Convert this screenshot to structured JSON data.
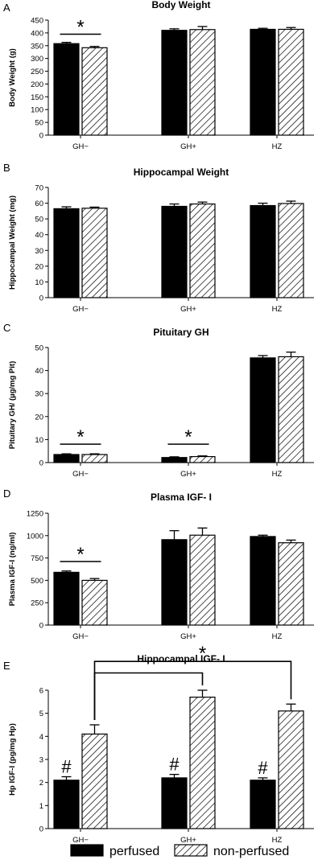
{
  "legend": {
    "items": [
      {
        "label": "perfused",
        "pattern": "solid"
      },
      {
        "label": "non-perfused",
        "pattern": "hatch"
      }
    ],
    "placement": "bottom"
  },
  "chart_data": [
    {
      "panel": "A",
      "type": "bar",
      "title": "Body Weight",
      "ylabel": "Body Weight (g)",
      "categories": [
        "GH−",
        "GH+",
        "HZ"
      ],
      "ylim": [
        0,
        450
      ],
      "yticks": [
        0,
        50,
        100,
        150,
        200,
        250,
        300,
        350,
        400,
        450
      ],
      "series": [
        {
          "name": "perfused",
          "values": [
            358,
            410,
            414
          ],
          "errors": [
            5,
            6,
            4
          ]
        },
        {
          "name": "non-perfused",
          "values": [
            342,
            413,
            414
          ],
          "errors": [
            5,
            12,
            7
          ]
        }
      ],
      "annotations": [
        {
          "type": "bracket",
          "from": [
            0,
            0
          ],
          "to": [
            0,
            1
          ],
          "y": 395,
          "label": "*"
        }
      ]
    },
    {
      "panel": "B",
      "type": "bar",
      "title": "Hippocampal Weight",
      "ylabel": "Hippocampal Weight (mg)",
      "categories": [
        "GH−",
        "GH+",
        "HZ"
      ],
      "ylim": [
        0,
        70
      ],
      "yticks": [
        0,
        10,
        20,
        30,
        40,
        50,
        60,
        70
      ],
      "series": [
        {
          "name": "perfused",
          "values": [
            56.5,
            58,
            58.5
          ],
          "errors": [
            1.2,
            1.5,
            1.5
          ]
        },
        {
          "name": "non-perfused",
          "values": [
            56.8,
            59.5,
            59.8
          ],
          "errors": [
            0.7,
            1.2,
            1.5
          ]
        }
      ],
      "annotations": []
    },
    {
      "panel": "C",
      "type": "bar",
      "title": "Pituitary GH",
      "ylabel": "Pituitary GH/ (µg/mg Pit)",
      "categories": [
        "GH−",
        "GH+",
        "HZ"
      ],
      "ylim": [
        0,
        50
      ],
      "yticks": [
        0,
        10,
        20,
        30,
        40,
        50
      ],
      "series": [
        {
          "name": "perfused",
          "values": [
            3.5,
            2.2,
            45.5
          ],
          "errors": [
            0.3,
            0.3,
            1.0
          ]
        },
        {
          "name": "non-perfused",
          "values": [
            3.5,
            2.6,
            46
          ],
          "errors": [
            0.3,
            0.3,
            2.0
          ]
        }
      ],
      "annotations": [
        {
          "type": "bracket",
          "from": [
            0,
            0
          ],
          "to": [
            0,
            1
          ],
          "y": 8,
          "label": "*"
        },
        {
          "type": "bracket",
          "from": [
            1,
            0
          ],
          "to": [
            1,
            1
          ],
          "y": 8,
          "label": "*"
        }
      ]
    },
    {
      "panel": "D",
      "type": "bar",
      "title": "Plasma IGF- I",
      "ylabel": "Plasma IGF-I (ng/ml)",
      "categories": [
        "GH−",
        "GH+",
        "HZ"
      ],
      "ylim": [
        0,
        1250
      ],
      "yticks": [
        0,
        250,
        500,
        750,
        1000,
        1250
      ],
      "series": [
        {
          "name": "perfused",
          "values": [
            590,
            955,
            990
          ],
          "errors": [
            15,
            100,
            15
          ]
        },
        {
          "name": "non-perfused",
          "values": [
            500,
            1005,
            920
          ],
          "errors": [
            20,
            80,
            30
          ]
        }
      ],
      "annotations": [
        {
          "type": "bracket",
          "from": [
            0,
            0
          ],
          "to": [
            0,
            1
          ],
          "y": 710,
          "label": "*"
        }
      ]
    },
    {
      "panel": "E",
      "type": "bar",
      "title": "Hippocampal IGF- I",
      "ylabel": "Hp IGF-I (pg/mg Hp)",
      "categories": [
        "GH−",
        "GH+",
        "HZ"
      ],
      "ylim": [
        0,
        6
      ],
      "yticks": [
        0,
        1,
        2,
        3,
        4,
        5,
        6
      ],
      "series": [
        {
          "name": "perfused",
          "values": [
            2.1,
            2.2,
            2.1
          ],
          "errors": [
            0.15,
            0.15,
            0.1
          ]
        },
        {
          "name": "non-perfused",
          "values": [
            4.1,
            5.7,
            5.1
          ],
          "errors": [
            0.4,
            0.3,
            0.3
          ]
        }
      ],
      "annotations": [
        {
          "type": "bar-label",
          "series": 0,
          "label": "#"
        },
        {
          "type": "bracket-down",
          "from": [
            0,
            1
          ],
          "to": [
            1,
            1
          ],
          "y": 6.75
        },
        {
          "type": "bracket-down",
          "from": [
            0,
            1
          ],
          "to": [
            2,
            1
          ],
          "y": 7.25,
          "label": "*"
        }
      ]
    }
  ]
}
